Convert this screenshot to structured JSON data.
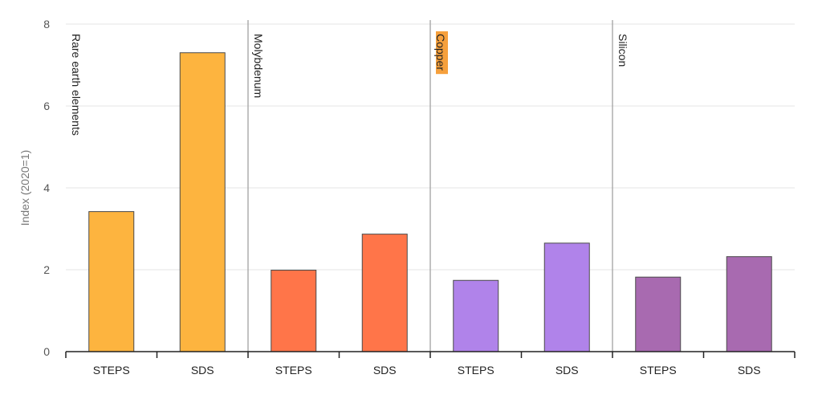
{
  "chart_data": {
    "type": "bar",
    "ylabel": "Index (2020=1)",
    "ylim": [
      0,
      8
    ],
    "yticks": [
      0,
      2,
      4,
      6,
      8
    ],
    "grid": true,
    "groups": [
      {
        "name": "Rare earth elements",
        "color": "#FDB43F",
        "highlight": false,
        "bars": [
          {
            "category": "STEPS",
            "value": 3.42
          },
          {
            "category": "SDS",
            "value": 7.3
          }
        ]
      },
      {
        "name": "Molybdenum",
        "color": "#FF7549",
        "highlight": false,
        "bars": [
          {
            "category": "STEPS",
            "value": 1.99
          },
          {
            "category": "SDS",
            "value": 2.87
          }
        ]
      },
      {
        "name": "Copper",
        "color": "#B083EA",
        "highlight": true,
        "highlight_color": "#F6A03C",
        "bars": [
          {
            "category": "STEPS",
            "value": 1.74
          },
          {
            "category": "SDS",
            "value": 2.65
          }
        ]
      },
      {
        "name": "Silicon",
        "color": "#A86AB0",
        "highlight": false,
        "bars": [
          {
            "category": "STEPS",
            "value": 1.82
          },
          {
            "category": "SDS",
            "value": 2.32
          }
        ]
      }
    ]
  }
}
